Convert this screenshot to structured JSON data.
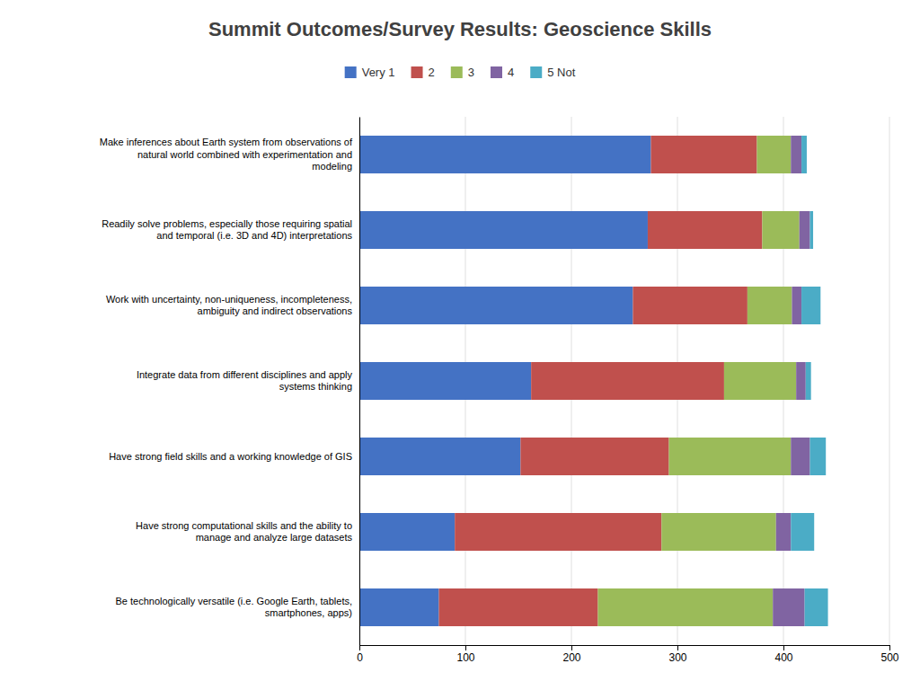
{
  "chart_data": {
    "type": "bar",
    "orientation": "horizontal",
    "stacked": true,
    "title": "Summit Outcomes/Survey Results: Geoscience Skills",
    "categories": [
      "Make inferences about Earth system from observations of\nnatural world combined with experimentation and\nmodeling",
      "Readily solve problems, especially those requiring spatial\nand temporal (i.e. 3D and 4D) interpretations",
      "Work with uncertainty, non-uniqueness, incompleteness,\nambiguity and indirect observations",
      "Integrate data from different disciplines and apply\nsystems thinking",
      "Have strong field skills and a working knowledge of GIS",
      "Have strong computational skills and the ability to\nmanage and analyze large datasets",
      "Be technologically versatile (i.e. Google Earth, tablets,\nsmartphones, apps)"
    ],
    "series": [
      {
        "name": "Very 1",
        "color": "#4472C4",
        "values": [
          275,
          272,
          258,
          162,
          152,
          90,
          75
        ]
      },
      {
        "name": "2",
        "color": "#C0504D",
        "values": [
          100,
          108,
          108,
          182,
          140,
          195,
          150
        ]
      },
      {
        "name": "3",
        "color": "#9BBB59",
        "values": [
          32,
          35,
          42,
          68,
          115,
          108,
          165
        ]
      },
      {
        "name": "4",
        "color": "#8064A2",
        "values": [
          10,
          10,
          9,
          9,
          18,
          14,
          30
        ]
      },
      {
        "name": "5 Not",
        "color": "#4BACC6",
        "values": [
          5,
          3,
          18,
          5,
          15,
          22,
          22
        ]
      }
    ],
    "xlim": [
      0,
      500
    ],
    "xticks": [
      0,
      100,
      200,
      300,
      400,
      500
    ],
    "grid": true,
    "legend": "top"
  }
}
